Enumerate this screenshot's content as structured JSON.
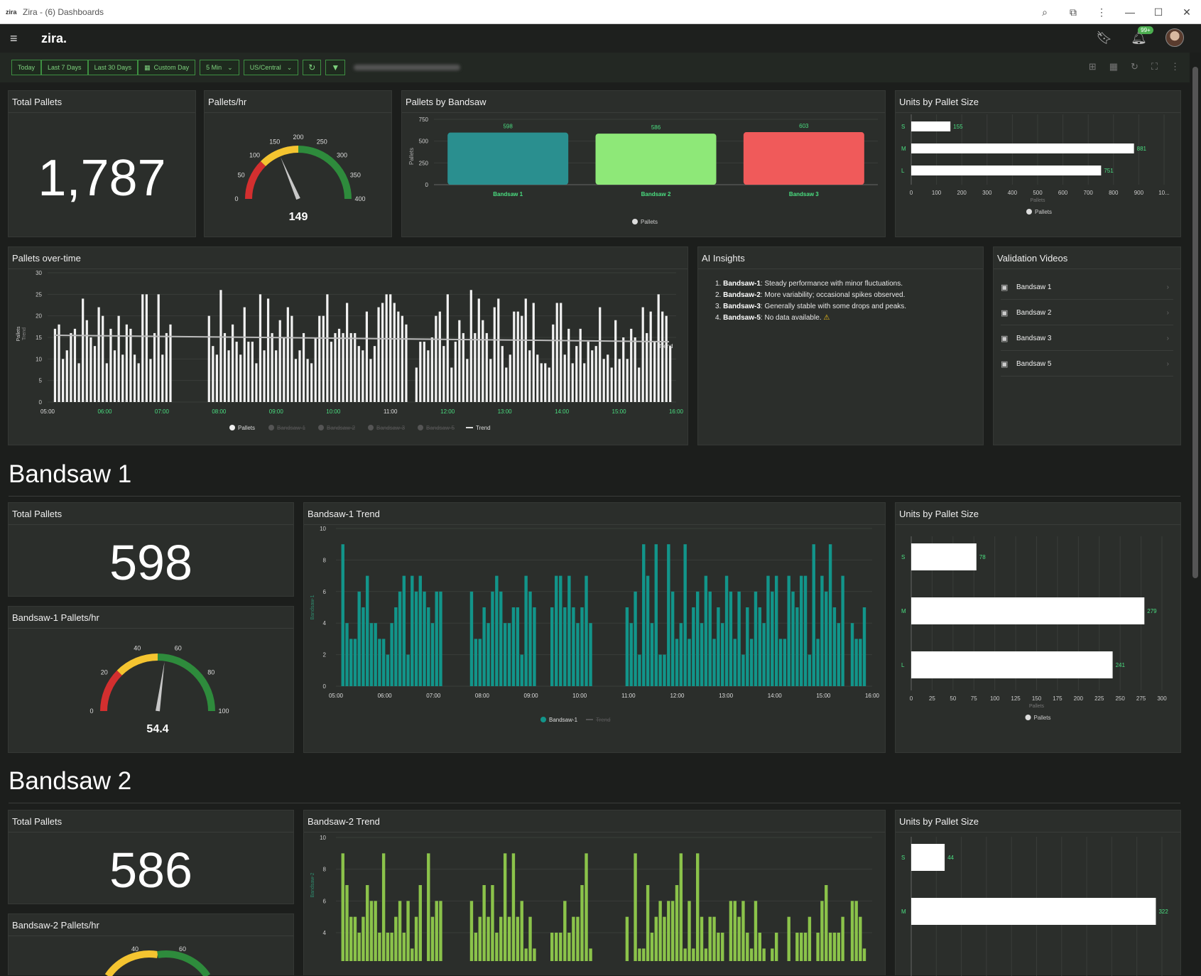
{
  "window": {
    "title": "Zira - (6) Dashboards",
    "favicon": "zira"
  },
  "app": {
    "logo": "zira.",
    "notif_badge": "99+"
  },
  "toolbar": {
    "today": "Today",
    "last7": "Last 7 Days",
    "last30": "Last 30 Days",
    "custom": "Custom Day",
    "interval": "5 Min",
    "tz": "US/Central"
  },
  "kpi": {
    "title": "Total Pallets",
    "value": "1,787"
  },
  "rate": {
    "title": "Pallets/hr",
    "value": "149",
    "max": 400,
    "ticks": [
      "0",
      "50",
      "100",
      "150",
      "200",
      "250",
      "300",
      "350",
      "400"
    ],
    "reading": 149
  },
  "bandsaw_bar": {
    "title": "Pallets by Bandsaw",
    "legend": "Pallets",
    "ylabel": "Pallets",
    "ticks": [
      "0",
      "250",
      "500",
      "750"
    ],
    "categories": [
      "Bandsaw 1",
      "Bandsaw 2",
      "Bandsaw 3"
    ],
    "values": [
      598,
      586,
      603
    ],
    "colors": [
      "#2a8f8f",
      "#8ee878",
      "#f05a5a"
    ]
  },
  "units_top": {
    "title": "Units by Pallet Size",
    "legend": "Pallets",
    "xlabel": "Pallets",
    "categories": [
      "S",
      "M",
      "L"
    ],
    "values": [
      155,
      881,
      751
    ],
    "ticks": [
      "0",
      "100",
      "200",
      "300",
      "400",
      "500",
      "600",
      "700",
      "800",
      "900",
      "10..."
    ],
    "xmax": 1000
  },
  "overtime": {
    "title": "Pallets over-time",
    "ylabel": "Pallets",
    "ylabel2": "Trend",
    "yticks": [
      "0",
      "5",
      "10",
      "15",
      "20",
      "25",
      "30"
    ],
    "xticks": [
      "05:00",
      "06:00",
      "07:00",
      "08:00",
      "09:00",
      "10:00",
      "11:00",
      "12:00",
      "13:00",
      "14:00",
      "15:00",
      "16:00"
    ],
    "legend": [
      "Pallets",
      "Bandsaw-1",
      "Bandsaw-2",
      "Bandsaw-3",
      "Bandsaw-5",
      "Trend"
    ],
    "trend_label": "Trend"
  },
  "insights": {
    "title": "AI Insights",
    "items": [
      {
        "num": "1.",
        "name": "Bandsaw-1",
        "text": ": Steady performance with minor fluctuations."
      },
      {
        "num": "2.",
        "name": "Bandsaw-2",
        "text": ": More variability; occasional spikes observed."
      },
      {
        "num": "3.",
        "name": "Bandsaw-3",
        "text": ": Generally stable with some drops and peaks."
      },
      {
        "num": "4.",
        "name": "Bandsaw-5",
        "text": ": No data available."
      }
    ]
  },
  "videos": {
    "title": "Validation Videos",
    "items": [
      "Bandsaw 1",
      "Bandsaw 2",
      "Bandsaw 3",
      "Bandsaw 5"
    ]
  },
  "bs1": {
    "section": "Bandsaw 1",
    "total_title": "Total Pallets",
    "total": "598",
    "rate_title": "Bandsaw-1 Pallets/hr",
    "rate": "54.4",
    "rate_val": 54.4,
    "rate_ticks": [
      "0",
      "20",
      "40",
      "60",
      "80",
      "100"
    ],
    "trend_title": "Bandsaw-1 Trend",
    "trend_ylabel": "Bandsaw-1",
    "yticks": [
      "0",
      "2",
      "4",
      "6",
      "8",
      "10"
    ],
    "xticks": [
      "05:00",
      "06:00",
      "07:00",
      "08:00",
      "09:00",
      "10:00",
      "11:00",
      "12:00",
      "13:00",
      "14:00",
      "15:00",
      "16:00"
    ],
    "legend": [
      "Bandsaw-1",
      "Trend"
    ],
    "units_title": "Units by Pallet Size",
    "units": [
      78,
      279,
      241
    ],
    "units_ticks": [
      "0",
      "25",
      "50",
      "75",
      "100",
      "125",
      "150",
      "175",
      "200",
      "225",
      "250",
      "275",
      "300"
    ],
    "units_max": 300,
    "units_xlabel": "Pallets",
    "units_legend": "Pallets"
  },
  "bs2": {
    "section": "Bandsaw 2",
    "total_title": "Total Pallets",
    "total": "586",
    "rate_title": "Bandsaw-2 Pallets/hr",
    "rate_ticks": [
      "40",
      "60"
    ],
    "trend_title": "Bandsaw-2 Trend",
    "trend_ylabel": "Bandsaw-2",
    "yticks": [
      "4",
      "6",
      "8",
      "10"
    ],
    "units_title": "Units by Pallet Size",
    "units": [
      44,
      322
    ],
    "units_max": 330
  },
  "colors": {
    "accent": "#4caf50",
    "teal": "#12958a",
    "lime": "#8bc34a",
    "green_label": "#4ade80"
  }
}
